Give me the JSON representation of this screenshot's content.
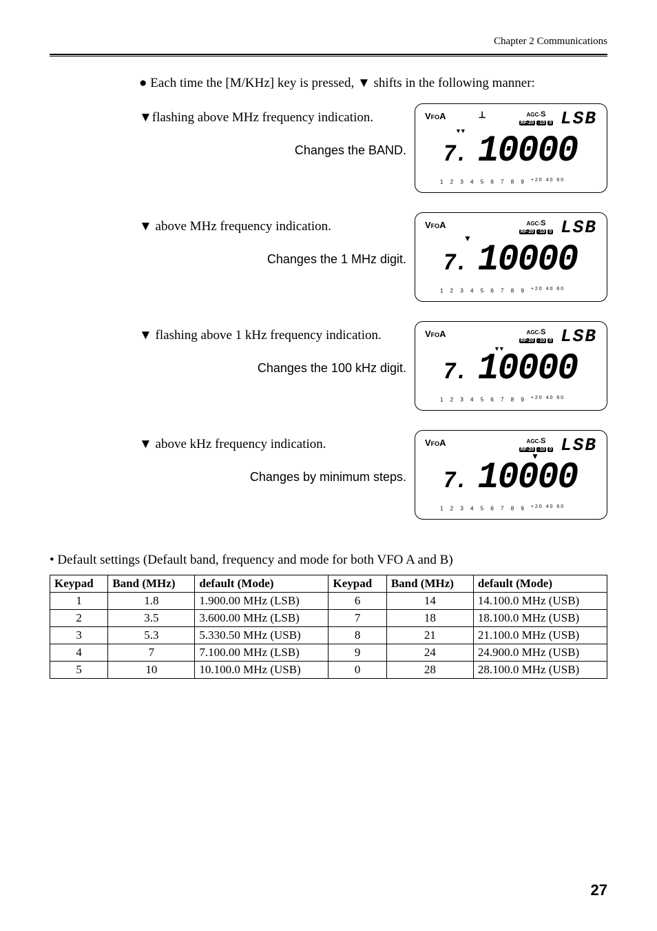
{
  "header": {
    "chapter": "Chapter 2   Communications"
  },
  "intro": "● Each time the [M/KHz] key is pressed, ▼ shifts in the following manner:",
  "sections": [
    {
      "text": "▼flashing above MHz frequency indication.",
      "sub": "Changes the BAND.",
      "lcd": {
        "vfo": "VFOA",
        "ant": true,
        "mode": "LSB",
        "fSmall": "7.",
        "fBig": "10000",
        "bigStyle": "dim",
        "markerType": "double",
        "markerLeft": 58,
        "markerTop": 34
      }
    },
    {
      "text": "▼ above MHz frequency indication.",
      "sub": "Changes the 1 MHz digit.",
      "lcd": {
        "vfo": "VFOA",
        "ant": false,
        "mode": "LSB",
        "fSmall": "7.",
        "fBig": "10000",
        "bigStyle": "dim",
        "markerType": "single",
        "markerLeft": 70,
        "markerTop": 30
      }
    },
    {
      "text": "▼ flashing above 1 kHz frequency indication.",
      "sub": "Changes the 100 kHz digit.",
      "lcd": {
        "vfo": "VFOA",
        "ant": false,
        "mode": "LSB",
        "fSmall": "7.",
        "fBig": "10000",
        "bigStyle": "mixed",
        "markerType": "double",
        "markerLeft": 114,
        "markerTop": 34
      }
    },
    {
      "text": "▼ above kHz frequency indication.",
      "sub": "Changes by minimum steps.",
      "lcd": {
        "vfo": "VFOA",
        "ant": false,
        "mode": "LSB",
        "fSmall": "7.",
        "fBig": "10000",
        "bigStyle": "dim",
        "markerType": "single",
        "markerLeft": 168,
        "markerTop": 30
      }
    }
  ],
  "defaultsCaption": "• Default settings (Default band, frequency and mode for both VFO A and B)",
  "tableHeaders": [
    "Keypad",
    "Band (MHz)",
    "default (Mode)",
    "Keypad",
    "Band (MHz)",
    "default (Mode)"
  ],
  "tableRows": [
    [
      "1",
      "1.8",
      "1.900.00 MHz (LSB)",
      "6",
      "14",
      "14.100.0 MHz (USB)"
    ],
    [
      "2",
      "3.5",
      "3.600.00 MHz (LSB)",
      "7",
      "18",
      "18.100.0 MHz (USB)"
    ],
    [
      "3",
      "5.3",
      "5.330.50 MHz (USB)",
      "8",
      "21",
      "21.100.0 MHz (USB)"
    ],
    [
      "4",
      "7",
      "7.100.00 MHz (LSB)",
      "9",
      "24",
      "24.900.0 MHz (USB)"
    ],
    [
      "5",
      "10",
      "10.100.0 MHz (USB)",
      "0",
      "28",
      "28.100.0 MHz (USB)"
    ]
  ],
  "scale": {
    "nums": "1 2 3 4 5 6 7 8 9",
    "plus": "+20  40  60"
  },
  "agc": {
    "top": "AGC-S",
    "pills": [
      "RF-20",
      "-10",
      "0"
    ]
  },
  "pageNum": "27"
}
